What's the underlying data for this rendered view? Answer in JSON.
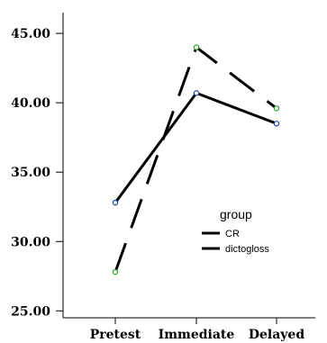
{
  "chart_data": {
    "type": "line",
    "categories": [
      "Pretest",
      "Immediate",
      "Delayed"
    ],
    "y_ticks": [
      "25.00",
      "30.00",
      "35.00",
      "40.00",
      "45.00"
    ],
    "ylim": [
      24.5,
      46.5
    ],
    "grid": false,
    "legend": {
      "title": "group",
      "placement": "center-right"
    },
    "series": [
      {
        "name": "CR",
        "values": [
          32.8,
          40.7,
          38.5
        ],
        "color": "#000000",
        "marker_color": "#1f3fa8",
        "line_style": "solid"
      },
      {
        "name": "dictogloss",
        "values": [
          27.8,
          44.0,
          39.6
        ],
        "color": "#000000",
        "marker_color": "#2ca02c",
        "line_style": "dashed"
      }
    ]
  }
}
